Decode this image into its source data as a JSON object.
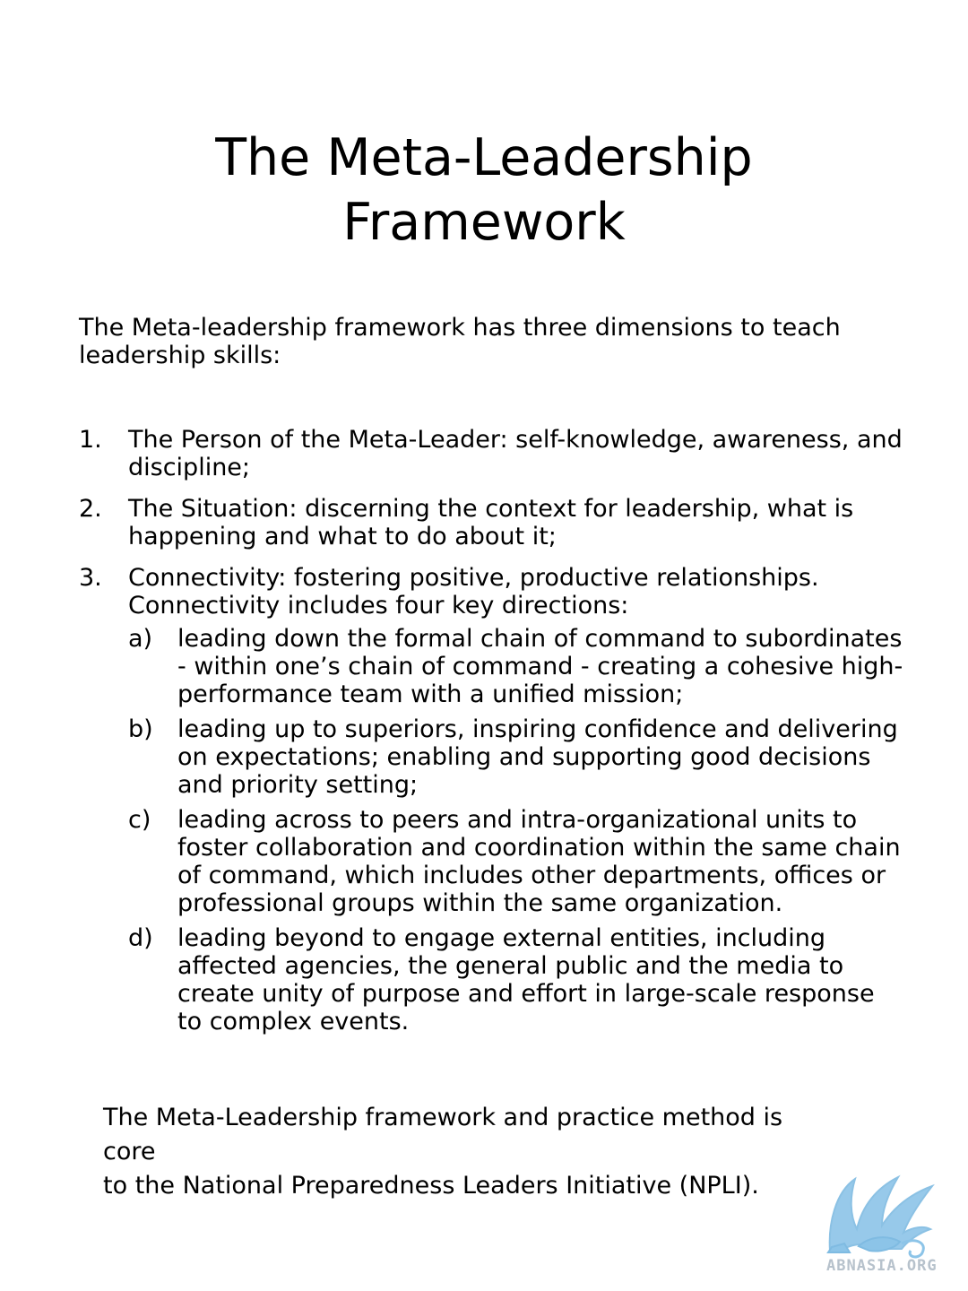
{
  "title": {
    "line1": "The Meta-Leadership",
    "line2": "Framework"
  },
  "intro": "The Meta-leadership framework has three dimensions to teach leadership skills:",
  "items": [
    {
      "number": "1.",
      "text": "The Person of the Meta-Leader: self-knowledge, awareness, and discipline;"
    },
    {
      "number": "2.",
      "text": "The Situation: discerning the context for leadership, what is happening and what to do about it;"
    },
    {
      "number": "3.",
      "text": "Connectivity: fostering positive, productive relationships. Connectivity includes four key directions:",
      "sub": [
        {
          "letter": "a)",
          "text": "leading down the formal chain of command to subordinates - within one’s chain of command - creating a cohesive high-performance team with a unified mission;"
        },
        {
          "letter": "b)",
          "text": "leading up to superiors, inspiring confidence and delivering on expectations; enabling and supporting good decisions and priority setting;"
        },
        {
          "letter": "c)",
          "text": "leading across to peers and intra-organizational units to foster collaboration and coordination within the same chain of command, which includes other departments, offices or professional groups within the same organization."
        },
        {
          "letter": "d)",
          "text": "leading beyond to engage external entities, including affected agencies, the general public and the media to create unity of purpose and effort in large-scale response to complex events."
        }
      ]
    }
  ],
  "closing": {
    "line1": "The Meta-Leadership framework and practice method is core",
    "line2": "to the National Preparedness Leaders Initiative (NPLI)."
  },
  "watermark": {
    "text": "ABNASIA.ORG",
    "icon": "griffin-logo-icon",
    "color": "#8cc4e8"
  }
}
